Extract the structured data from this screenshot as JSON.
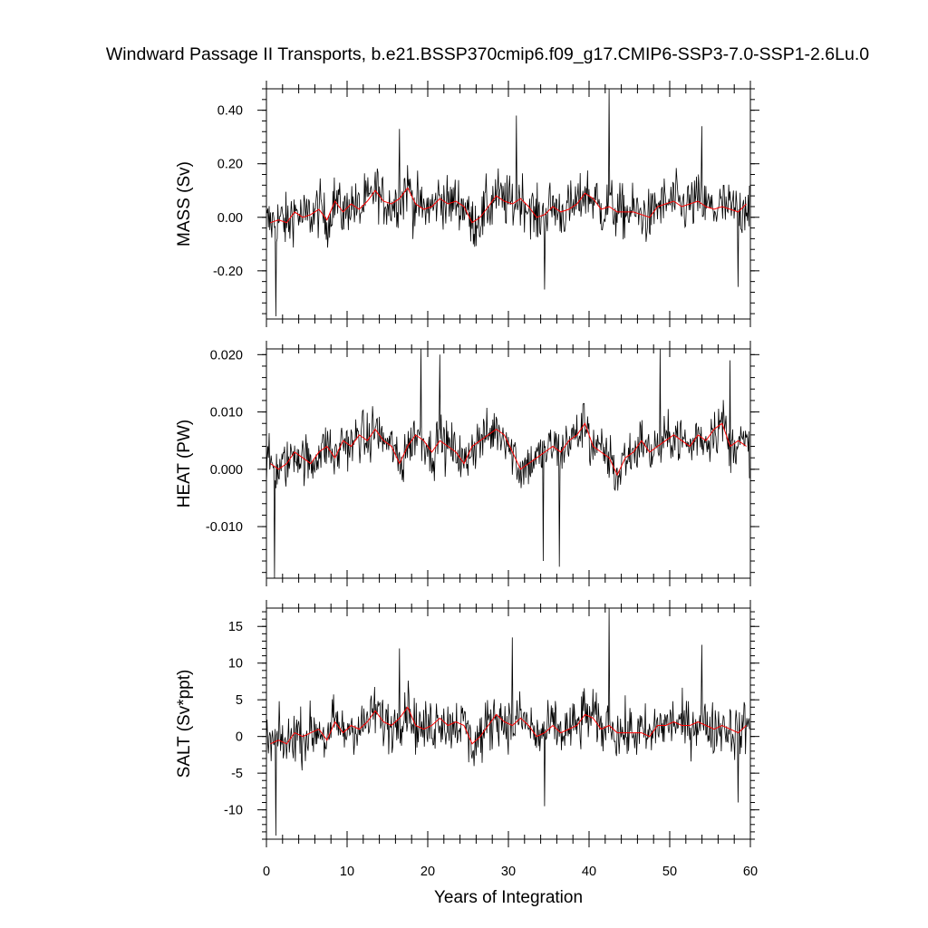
{
  "chart_data": {
    "type": "line",
    "title": "Windward Passage II Transports, b.e21.BSSP370cmip6.f09_g17.CMIP6-SSP3-7.0-SSP1-2.6Lu.0",
    "xlabel": "Years of Integration",
    "xlim": [
      0,
      60
    ],
    "x_ticks": [
      0,
      10,
      20,
      30,
      40,
      50,
      60
    ],
    "x_tick_labels": [
      "0",
      "10",
      "20",
      "30",
      "40",
      "50",
      "60"
    ],
    "x_step_years": 0.0833,
    "colors": {
      "monthly": "#000000",
      "annual": "#ff0000"
    },
    "panels": [
      {
        "ylabel": "MASS (Sv)",
        "ylim": [
          -0.38,
          0.48
        ],
        "y_ticks": [
          -0.2,
          0.0,
          0.2,
          0.4
        ],
        "y_tick_labels": [
          "-0.20",
          "0.00",
          "0.20",
          "0.40"
        ],
        "y_minor_step": 0.04,
        "annual_values": [
          -0.02,
          -0.01,
          -0.02,
          0.02,
          0.0,
          0.01,
          0.03,
          -0.01,
          0.06,
          0.02,
          0.05,
          0.03,
          0.06,
          0.1,
          0.06,
          0.05,
          0.07,
          0.11,
          0.05,
          0.03,
          0.04,
          0.07,
          0.05,
          0.06,
          0.04,
          -0.02,
          0.0,
          0.04,
          0.08,
          0.06,
          0.05,
          0.07,
          0.04,
          0.0,
          0.01,
          0.04,
          0.02,
          0.03,
          0.05,
          0.09,
          0.07,
          0.03,
          0.04,
          0.02,
          0.02,
          0.02,
          0.01,
          0.0,
          0.04,
          0.05,
          0.06,
          0.04,
          0.05,
          0.06,
          0.04,
          0.03,
          0.04,
          0.03,
          0.02,
          0.05
        ],
        "amplitude": 0.1,
        "spikes": [
          [
            1.2,
            -0.37
          ],
          [
            16.5,
            0.33
          ],
          [
            31,
            0.38
          ],
          [
            34.5,
            -0.27
          ],
          [
            42.5,
            0.48
          ],
          [
            54,
            0.34
          ],
          [
            58.5,
            -0.26
          ]
        ]
      },
      {
        "ylabel": "HEAT (PW)",
        "ylim": [
          -0.019,
          0.021
        ],
        "y_ticks": [
          -0.01,
          0.0,
          0.01,
          0.02
        ],
        "y_tick_labels": [
          "-0.010",
          "0.000",
          "0.010",
          "0.020"
        ],
        "y_minor_step": 0.002,
        "annual_values": [
          0.001,
          0.0,
          0.001,
          0.003,
          0.002,
          0.001,
          0.003,
          0.004,
          0.002,
          0.005,
          0.004,
          0.006,
          0.005,
          0.007,
          0.005,
          0.004,
          0.001,
          0.004,
          0.006,
          0.005,
          0.003,
          0.005,
          0.004,
          0.003,
          0.001,
          0.004,
          0.005,
          0.006,
          0.007,
          0.006,
          0.003,
          0.0,
          0.001,
          0.002,
          0.003,
          0.004,
          0.003,
          0.005,
          0.006,
          0.008,
          0.004,
          0.003,
          0.002,
          -0.001,
          0.002,
          0.003,
          0.005,
          0.003,
          0.004,
          0.005,
          0.006,
          0.005,
          0.004,
          0.006,
          0.005,
          0.007,
          0.008,
          0.004,
          0.005,
          0.004
        ],
        "amplitude": 0.0042,
        "spikes": [
          [
            1.0,
            -0.019
          ],
          [
            19.2,
            0.021
          ],
          [
            21.5,
            0.02
          ],
          [
            34.3,
            -0.016
          ],
          [
            36.3,
            -0.017
          ],
          [
            48.8,
            0.021
          ],
          [
            57.5,
            0.019
          ]
        ]
      },
      {
        "ylabel": "SALT (Sv*ppt)",
        "ylim": [
          -14,
          17.5
        ],
        "y_ticks": [
          -10,
          -5,
          0,
          5,
          10,
          15
        ],
        "y_tick_labels": [
          "-10",
          "-5",
          "0",
          "5",
          "10",
          "15"
        ],
        "y_minor_step": 1,
        "annual_values": [
          -1,
          -0.5,
          -1,
          0.5,
          0,
          0.5,
          1,
          -0.5,
          2,
          0.5,
          1.5,
          1,
          2,
          3.5,
          2,
          1.5,
          2.5,
          4,
          1.5,
          1,
          1.5,
          2.5,
          1.5,
          2,
          1.5,
          -1,
          0,
          1.5,
          3,
          2,
          1.5,
          2.5,
          1.5,
          0,
          0.5,
          1.5,
          0.5,
          1,
          1.5,
          3,
          2.5,
          1,
          1.5,
          0.5,
          0.5,
          0.5,
          0.5,
          0,
          1.5,
          1.5,
          2,
          1.5,
          1.5,
          2,
          1.5,
          1,
          1.5,
          1,
          0.5,
          1.5
        ],
        "amplitude": 3.6,
        "spikes": [
          [
            1.2,
            -13.5
          ],
          [
            16.5,
            12
          ],
          [
            30.5,
            13.5
          ],
          [
            34.5,
            -9.5
          ],
          [
            42.5,
            17.5
          ],
          [
            54,
            12.5
          ],
          [
            58.5,
            -9
          ]
        ]
      }
    ]
  }
}
